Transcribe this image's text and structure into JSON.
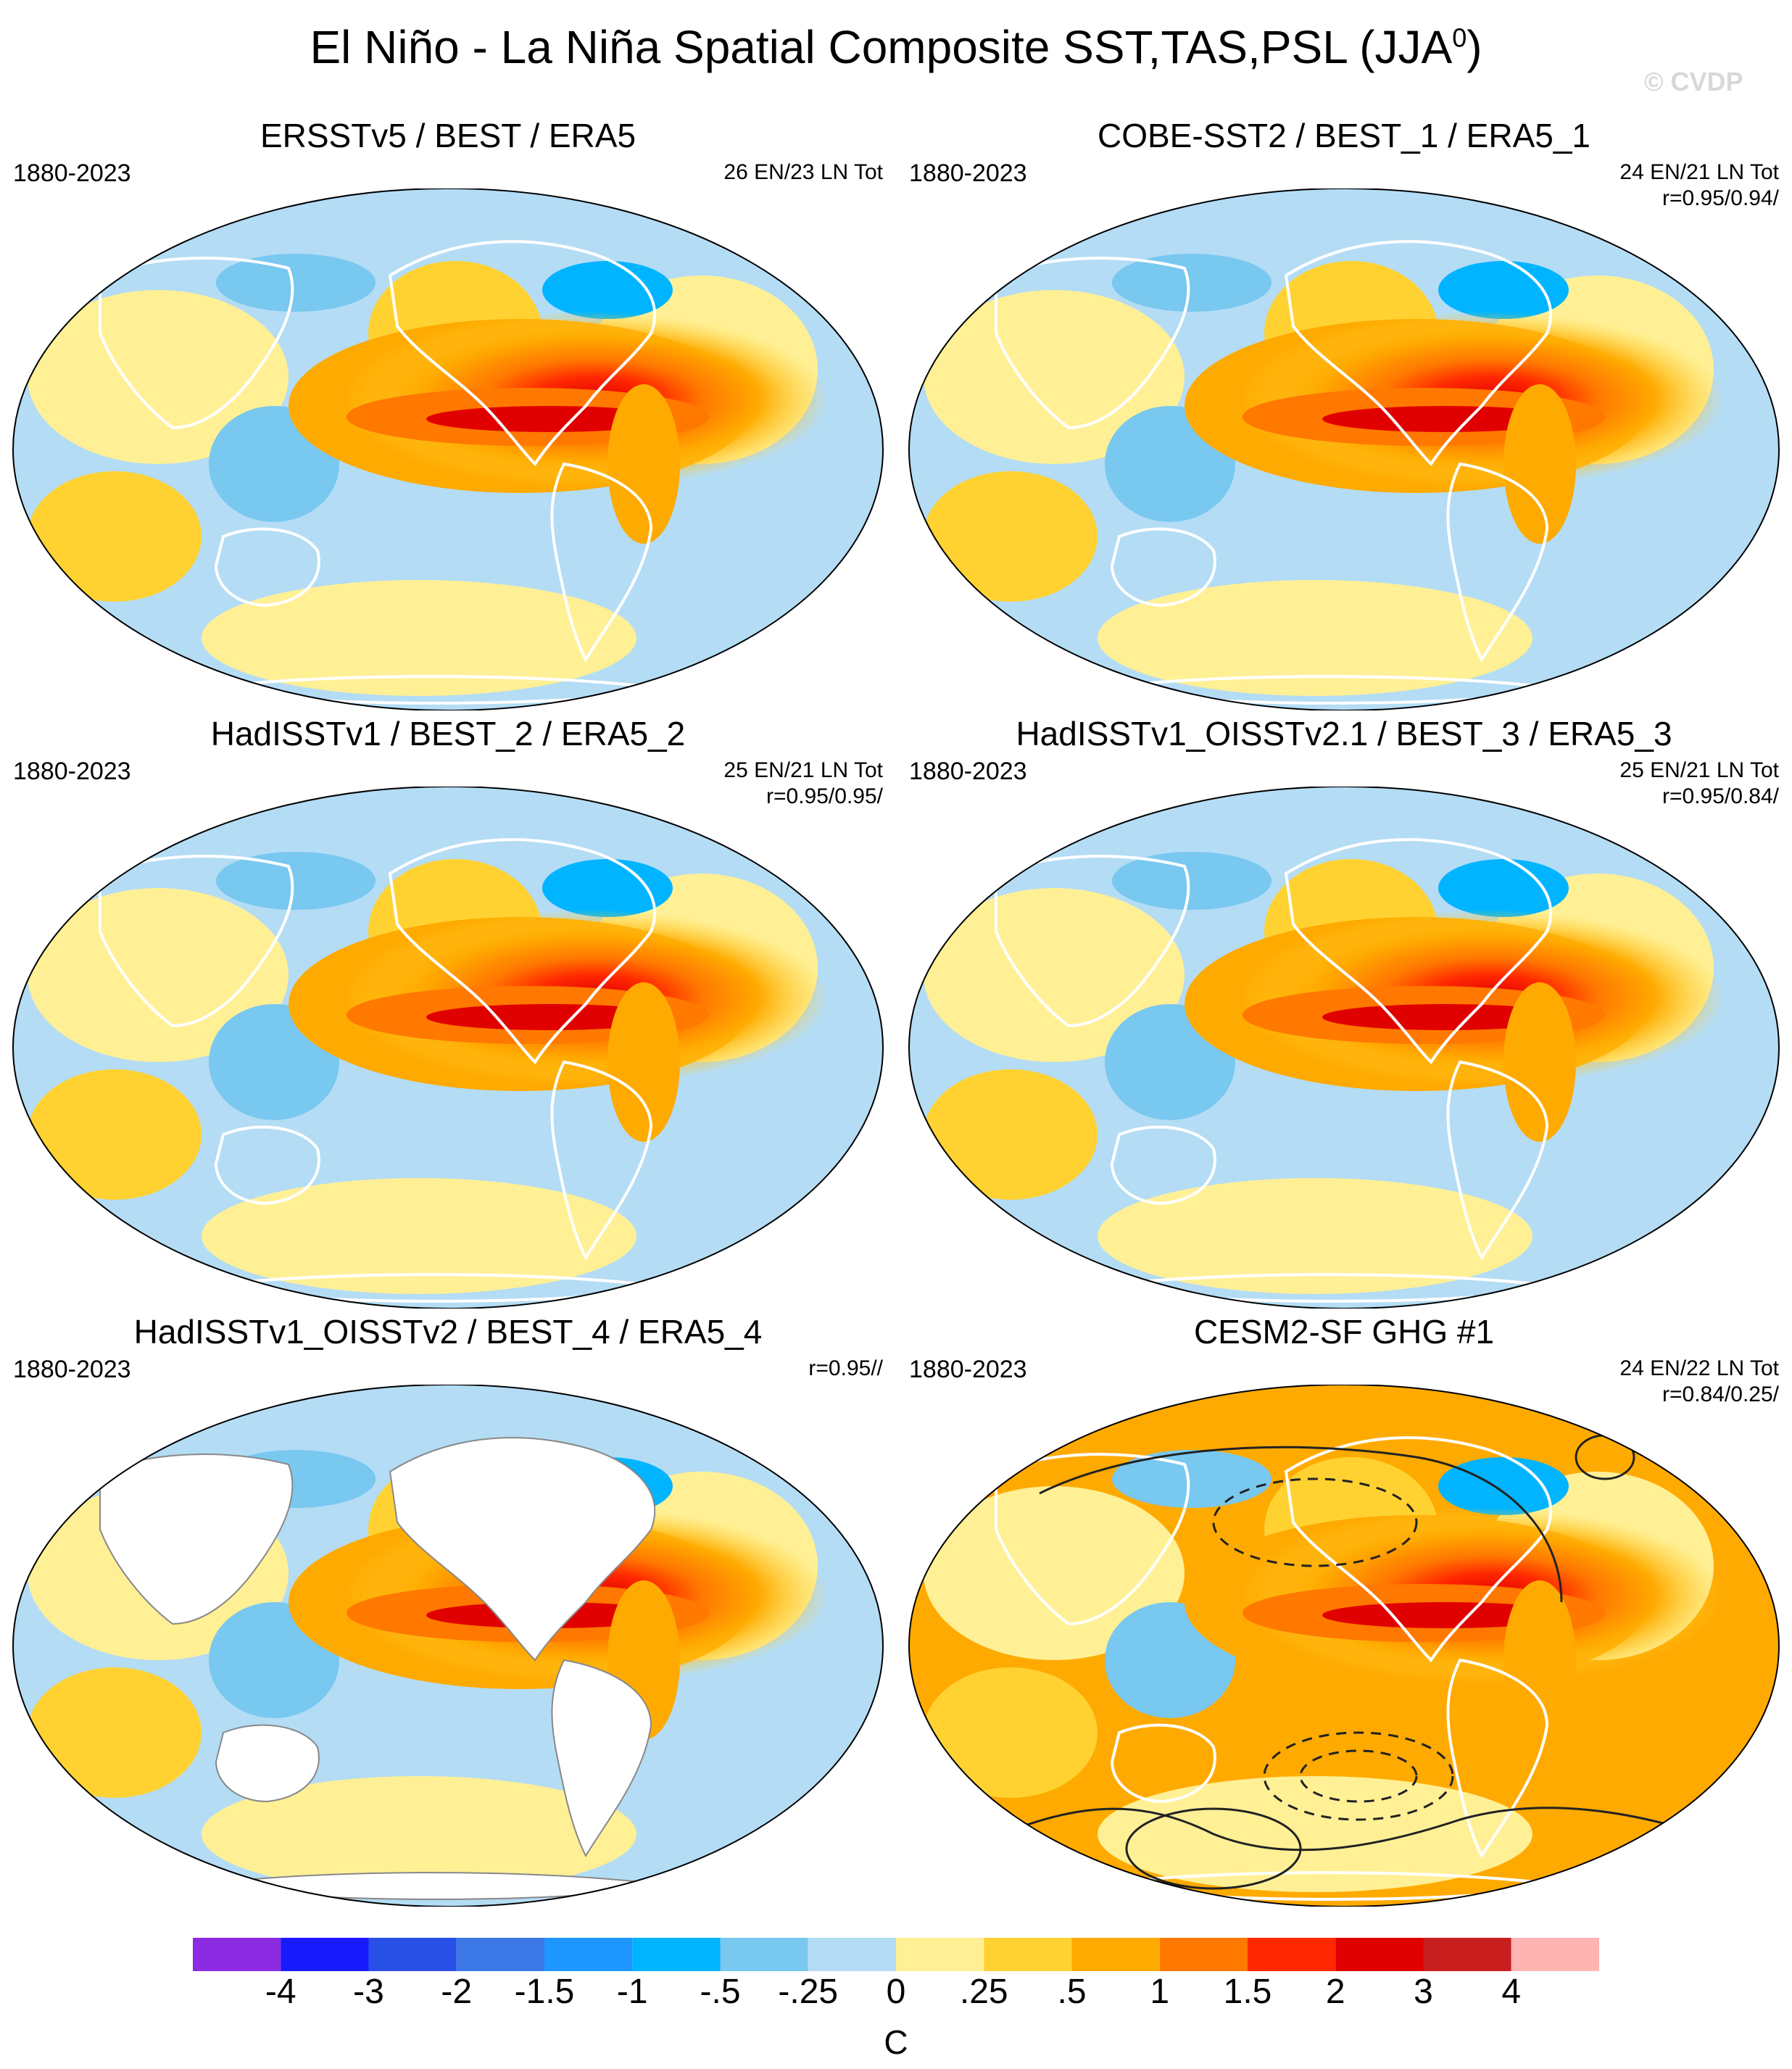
{
  "figure": {
    "title": "El Niño - La Niña Spatial Composite SST,TAS,PSL (JJA",
    "title_sup": "0",
    "title_end": ")",
    "watermark": "© CVDP"
  },
  "panels": [
    {
      "title": "ERSSTv5 / BEST / ERA5",
      "period": "1880-2023",
      "count": "26 EN/23 LN Tot",
      "stats": "",
      "masked_land": false,
      "contours": false
    },
    {
      "title": "COBE-SST2 / BEST_1 / ERA5_1",
      "period": "1880-2023",
      "count": "24 EN/21 LN Tot",
      "stats": "r=0.95/0.94/",
      "masked_land": false,
      "contours": false
    },
    {
      "title": "HadISSTv1 / BEST_2 / ERA5_2",
      "period": "1880-2023",
      "count": "25 EN/21 LN Tot",
      "stats": "r=0.95/0.95/",
      "masked_land": false,
      "contours": false
    },
    {
      "title": "HadISSTv1_OISSTv2.1 / BEST_3 / ERA5_3",
      "period": "1880-2023",
      "count": "25 EN/21 LN Tot",
      "stats": "r=0.95/0.84/",
      "masked_land": false,
      "contours": false
    },
    {
      "title": "HadISSTv1_OISSTv2 / BEST_4 / ERA5_4",
      "period": "1880-2023",
      "count": "",
      "stats": "r=0.95//",
      "masked_land": true,
      "contours": false
    },
    {
      "title": "CESM2-SF GHG #1",
      "period": "1880-2023",
      "count": "24 EN/22 LN Tot",
      "stats": "r=0.84/0.25/",
      "masked_land": false,
      "contours": true
    }
  ],
  "colorbar": {
    "unit": "C",
    "labels": [
      "-4",
      "-3",
      "-2",
      "-1.5",
      "-1",
      "-.5",
      "-.25",
      "0",
      ".25",
      ".5",
      "1",
      "1.5",
      "2",
      "3",
      "4"
    ],
    "colors": [
      "#8b2be2",
      "#1a1aff",
      "#2850e6",
      "#3c78e6",
      "#1e96ff",
      "#00b4ff",
      "#78c8f0",
      "#b4dcf5",
      "#fff096",
      "#ffd232",
      "#ffaa00",
      "#ff7800",
      "#ff2800",
      "#e10000",
      "#c81e1e",
      "#ffb4b4"
    ]
  }
}
